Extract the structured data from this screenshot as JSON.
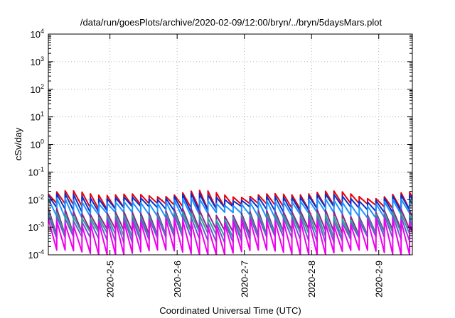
{
  "chart_data": {
    "type": "line",
    "title": "/data/run/goesPlots/archive/2020-02-09/12:00/bryn/../bryn/5daysMars.plot",
    "xlabel": "Coordinated Universal Time (UTC)",
    "ylabel": "cSv/day",
    "y_scale": "log",
    "ylim": [
      0.0001,
      10000
    ],
    "y_ticks": [
      {
        "base": "10",
        "exp": "-4",
        "value": 0.0001
      },
      {
        "base": "10",
        "exp": "-3",
        "value": 0.001
      },
      {
        "base": "10",
        "exp": "-2",
        "value": 0.01
      },
      {
        "base": "10",
        "exp": "-1",
        "value": 0.1
      },
      {
        "base": "10",
        "exp": "0",
        "value": 1
      },
      {
        "base": "10",
        "exp": "1",
        "value": 10
      },
      {
        "base": "10",
        "exp": "2",
        "value": 100
      },
      {
        "base": "10",
        "exp": "3",
        "value": 1000
      },
      {
        "base": "10",
        "exp": "4",
        "value": 10000
      }
    ],
    "xlim": [
      "2020-02-04 02:00",
      "2020-02-09 12:00"
    ],
    "x_ticks": [
      {
        "label": "2020-2-5",
        "date": "2020-02-05"
      },
      {
        "label": "2020-2-6",
        "date": "2020-02-06"
      },
      {
        "label": "2020-2-7",
        "date": "2020-02-07"
      },
      {
        "label": "2020-2-8",
        "date": "2020-02-08"
      },
      {
        "label": "2020-2-9",
        "date": "2020-02-09"
      }
    ],
    "grid": true,
    "period_hours": 3,
    "series": [
      {
        "color": "#e8000b",
        "peak": 0.016,
        "trough": 0.0058
      },
      {
        "color": "#0a2ec8",
        "peak": 0.0125,
        "trough": 0.0045
      },
      {
        "color": "#1e90ff",
        "peak": 0.0085,
        "trough": 0.0028
      },
      {
        "color": "#8b2a8b",
        "peak": 0.0036,
        "trough": 0.00068
      },
      {
        "color": "#2aa198",
        "peak": 0.0027,
        "trough": 0.00052
      },
      {
        "color": "#6a5acd",
        "peak": 0.0021,
        "trough": 0.00036
      },
      {
        "color": "#ee00ee",
        "peak": 0.0016,
        "trough": 0.00012
      }
    ]
  }
}
